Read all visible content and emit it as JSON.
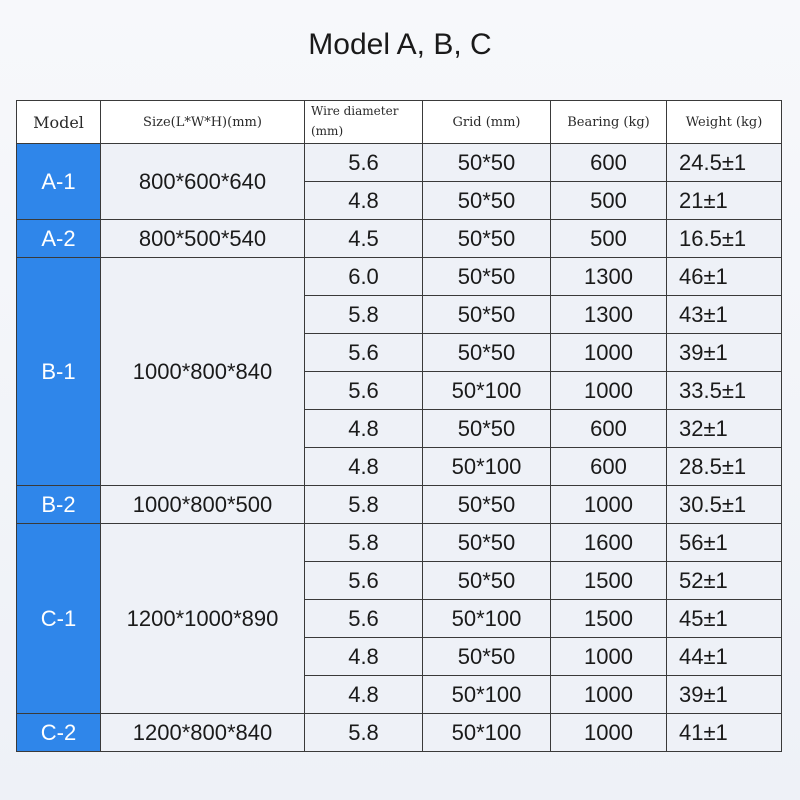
{
  "title": "Model A, B, C",
  "headers": {
    "model": "Model",
    "size": "Size(L*W*H)(mm)",
    "wire": "Wire diameter (mm)",
    "grid": "Grid (mm)",
    "bearing": "Bearing (kg)",
    "weight": "Weight (kg)"
  },
  "groups": [
    {
      "model": "A-1",
      "size": "800*600*640",
      "rows": [
        {
          "wire": "5.6",
          "grid": "50*50",
          "bearing": "600",
          "weight": "24.5±1"
        },
        {
          "wire": "4.8",
          "grid": "50*50",
          "bearing": "500",
          "weight": "21±1"
        }
      ]
    },
    {
      "model": "A-2",
      "size": "800*500*540",
      "rows": [
        {
          "wire": "4.5",
          "grid": "50*50",
          "bearing": "500",
          "weight": "16.5±1"
        }
      ]
    },
    {
      "model": "B-1",
      "size": "1000*800*840",
      "rows": [
        {
          "wire": "6.0",
          "grid": "50*50",
          "bearing": "1300",
          "weight": "46±1"
        },
        {
          "wire": "5.8",
          "grid": "50*50",
          "bearing": "1300",
          "weight": "43±1"
        },
        {
          "wire": "5.6",
          "grid": "50*50",
          "bearing": "1000",
          "weight": "39±1"
        },
        {
          "wire": "5.6",
          "grid": "50*100",
          "bearing": "1000",
          "weight": "33.5±1"
        },
        {
          "wire": "4.8",
          "grid": "50*50",
          "bearing": "600",
          "weight": "32±1"
        },
        {
          "wire": "4.8",
          "grid": "50*100",
          "bearing": "600",
          "weight": "28.5±1"
        }
      ]
    },
    {
      "model": "B-2",
      "size": "1000*800*500",
      "rows": [
        {
          "wire": "5.8",
          "grid": "50*50",
          "bearing": "1000",
          "weight": "30.5±1"
        }
      ]
    },
    {
      "model": "C-1",
      "size": "1200*1000*890",
      "rows": [
        {
          "wire": "5.8",
          "grid": "50*50",
          "bearing": "1600",
          "weight": "56±1"
        },
        {
          "wire": "5.6",
          "grid": "50*50",
          "bearing": "1500",
          "weight": "52±1"
        },
        {
          "wire": "5.6",
          "grid": "50*100",
          "bearing": "1500",
          "weight": "45±1"
        },
        {
          "wire": "4.8",
          "grid": "50*50",
          "bearing": "1000",
          "weight": "44±1"
        },
        {
          "wire": "4.8",
          "grid": "50*100",
          "bearing": "1000",
          "weight": "39±1"
        }
      ]
    },
    {
      "model": "C-2",
      "size": "1200*800*840",
      "rows": [
        {
          "wire": "5.8",
          "grid": "50*100",
          "bearing": "1000",
          "weight": "41±1"
        }
      ]
    }
  ],
  "colors": {
    "model_cell": "#2f86ea",
    "header_bg": "#ffffff"
  }
}
